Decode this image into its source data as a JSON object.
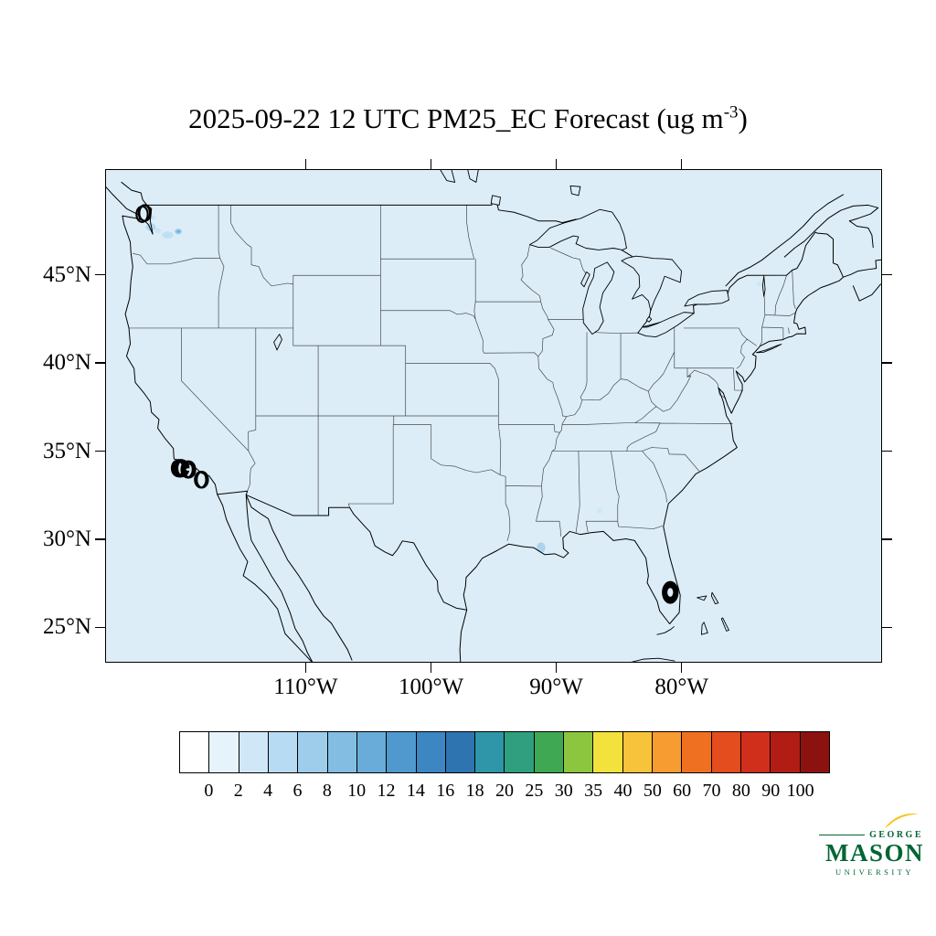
{
  "title": {
    "prefix": "2025-09-22 12 UTC PM25_EC Forecast (ug m",
    "exponent": "-3",
    "suffix": ")"
  },
  "chart_data": {
    "type": "heatmap",
    "title": "2025-09-22 12 UTC PM25_EC Forecast (ug m-3)",
    "variable": "PM25_EC",
    "units": "ug m-3",
    "forecast_time": "2025-09-22 12 UTC",
    "region": "Contiguous United States with state and national boundaries",
    "x_axis": {
      "tick_labels": [
        "110°W",
        "100°W",
        "90°W",
        "80°W"
      ]
    },
    "y_axis": {
      "tick_labels": [
        "45°N",
        "40°N",
        "35°N",
        "30°N",
        "25°N"
      ],
      "order": "top-to-bottom"
    },
    "colorbar": {
      "levels": [
        0,
        2,
        4,
        6,
        8,
        10,
        12,
        14,
        16,
        18,
        20,
        25,
        30,
        35,
        40,
        50,
        60,
        70,
        80,
        90,
        100
      ],
      "colors": [
        "#FFFFFF",
        "#E6F3FB",
        "#D0E7F7",
        "#B7DBF2",
        "#9DCDEB",
        "#83BDE2",
        "#69ACD9",
        "#5099CE",
        "#3C86C1",
        "#2D74B1",
        "#2E96A8",
        "#2F9F7F",
        "#3FA852",
        "#8CC63F",
        "#F3E13D",
        "#F6C33A",
        "#F69C30",
        "#F07022",
        "#E44D1E",
        "#D02F1B",
        "#B11C15",
        "#8C1210"
      ]
    },
    "background_value_range": "0-2",
    "observations": [
      {
        "location": "western Washington (Puget Sound area)",
        "value_range": "2-8"
      },
      {
        "location": "central Washington",
        "value_range": "2-8"
      },
      {
        "location": "northern New York / Vermont",
        "value_range": "0-2"
      },
      {
        "location": "Mississippi River delta, Louisiana",
        "value_range": "2-4"
      },
      {
        "location": "southern Alabama",
        "value_range": "0-2"
      },
      {
        "location": "rest of domain",
        "value_range": "0-2"
      }
    ]
  },
  "branding": {
    "george": "GEORGE",
    "mason": "MASON",
    "university": "UNIVERSITY"
  },
  "colors": {
    "map_fill": "#dcedf8",
    "state_line": "#4a4a4a",
    "coast_line": "#000000",
    "gmu_green": "#006633",
    "gmu_gold": "#F7C425"
  }
}
